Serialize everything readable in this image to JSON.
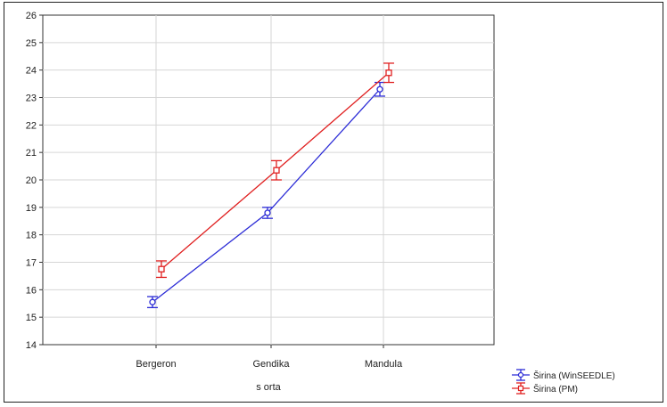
{
  "chart_data": {
    "type": "line",
    "title": "",
    "xlabel": "s orta",
    "ylabel": "",
    "categories": [
      "Bergeron",
      "Gendika",
      "Mandula"
    ],
    "ylim": [
      14,
      26
    ],
    "yticks": [
      14,
      15,
      16,
      17,
      18,
      19,
      20,
      21,
      22,
      23,
      24,
      25,
      26
    ],
    "grid": true,
    "legend_position": "bottom-right",
    "series": [
      {
        "name": "Širina (WinSEEDLE)",
        "color": "#2b2bd6",
        "marker": "circle",
        "values": [
          15.55,
          18.8,
          23.3
        ],
        "error_low": [
          15.35,
          18.6,
          23.05
        ],
        "error_high": [
          15.75,
          19.0,
          23.55
        ]
      },
      {
        "name": "Širina (PM)",
        "color": "#e02020",
        "marker": "square",
        "values": [
          16.75,
          20.35,
          23.9
        ],
        "error_low": [
          16.45,
          20.0,
          23.55
        ],
        "error_high": [
          17.05,
          20.7,
          24.25
        ]
      }
    ]
  }
}
